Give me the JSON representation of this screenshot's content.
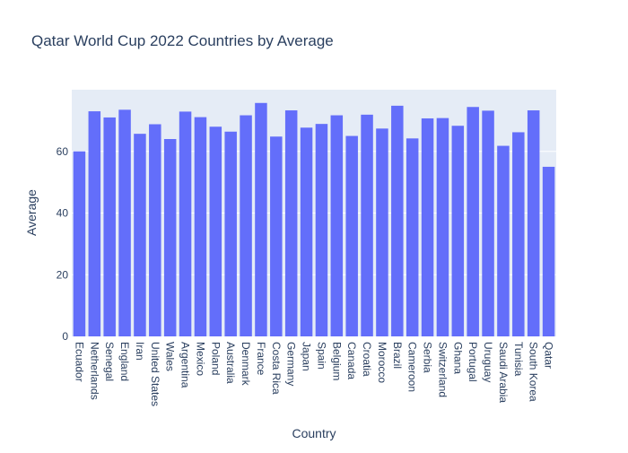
{
  "chart_data": {
    "type": "bar",
    "title": "Qatar World Cup 2022 Countries by Average",
    "xlabel": "Country",
    "ylabel": "Average",
    "ylim": [
      0,
      80
    ],
    "yticks": [
      0,
      20,
      40,
      60
    ],
    "grid": true,
    "legend": "none",
    "bar_color": "#636efa",
    "plot_bg": "#e5ecf6",
    "grid_color": "#ffffff",
    "text_color": "#2a3f5f",
    "categories": [
      "Ecuador",
      "Netherlands",
      "Senegal",
      "England",
      "Iran",
      "United States",
      "Wales",
      "Argentina",
      "Mexico",
      "Poland",
      "Australia",
      "Denmark",
      "France",
      "Costa Rica",
      "Germany",
      "Japan",
      "Spain",
      "Belgium",
      "Canada",
      "Croatia",
      "Morocco",
      "Brazil",
      "Cameroon",
      "Serbia",
      "Switzerland",
      "Ghana",
      "Portugal",
      "Uruguay",
      "Saudi Arabia",
      "Tunisia",
      "South Korea",
      "Qatar"
    ],
    "values": [
      60.0,
      73.0,
      71.0,
      73.5,
      65.7,
      68.8,
      64.0,
      72.9,
      71.1,
      68.0,
      66.4,
      71.7,
      75.7,
      64.8,
      73.3,
      67.7,
      68.9,
      71.7,
      65.0,
      71.9,
      67.4,
      74.8,
      64.2,
      70.7,
      70.8,
      68.3,
      74.4,
      73.2,
      61.8,
      66.2,
      73.3,
      55.0
    ]
  }
}
